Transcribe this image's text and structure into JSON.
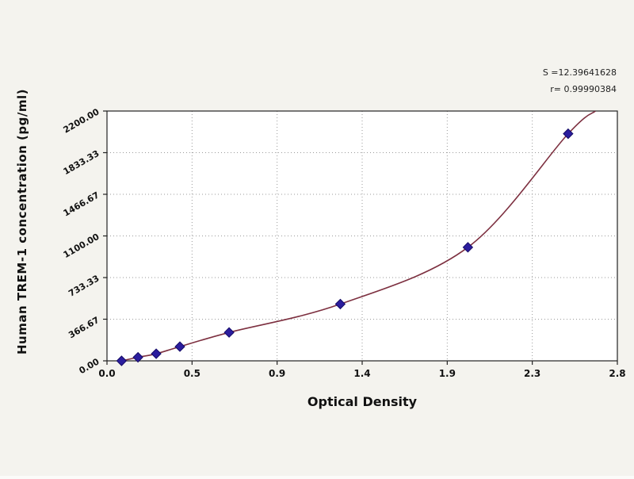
{
  "figure": {
    "y_axis_label": "Human TREM-1 concentration (pg/ml)",
    "x_axis_label": "Optical Density",
    "annotation_line1": "S =12.39641628",
    "annotation_line2": "r= 0.99990384"
  },
  "chart_data": {
    "type": "scatter",
    "title": "",
    "xlabel": "Optical Density",
    "ylabel": "Human TREM-1 concentration (pg/ml)",
    "xlim": [
      0,
      2.8
    ],
    "ylim": [
      0,
      2200
    ],
    "grid": "dotted",
    "legend": "none",
    "x_ticks": [
      {
        "value": 0.0,
        "label": "0.0"
      },
      {
        "value": 0.4667,
        "label": "0.5"
      },
      {
        "value": 0.9333,
        "label": "0.9"
      },
      {
        "value": 1.4,
        "label": "1.4"
      },
      {
        "value": 1.8667,
        "label": "1.9"
      },
      {
        "value": 2.3333,
        "label": "2.3"
      },
      {
        "value": 2.8,
        "label": "2.8"
      }
    ],
    "y_ticks": [
      {
        "value": 0,
        "label": "0.00"
      },
      {
        "value": 366.67,
        "label": "366.67"
      },
      {
        "value": 733.33,
        "label": "733.33"
      },
      {
        "value": 1100,
        "label": "1100.00"
      },
      {
        "value": 1466.67,
        "label": "1466.67"
      },
      {
        "value": 1833.33,
        "label": "1833.33"
      },
      {
        "value": 2200,
        "label": "2200.00"
      }
    ],
    "series": [
      {
        "name": "standard-curve-points",
        "marker": "diamond",
        "marker_color": "#2b1d9e",
        "marker_edge_color": "#150b66",
        "points": [
          {
            "x": 0.08,
            "y": 0
          },
          {
            "x": 0.17,
            "y": 31.25
          },
          {
            "x": 0.27,
            "y": 62.5
          },
          {
            "x": 0.4,
            "y": 125
          },
          {
            "x": 0.67,
            "y": 250
          },
          {
            "x": 1.28,
            "y": 500
          },
          {
            "x": 1.98,
            "y": 1000
          },
          {
            "x": 2.53,
            "y": 2000
          }
        ]
      }
    ],
    "fit_curve": {
      "color": "#7d3040",
      "extends_to": {
        "x": 2.68,
        "y": 2200
      },
      "annotation_s": "S =12.39641628",
      "annotation_r": "r= 0.99990384"
    }
  }
}
